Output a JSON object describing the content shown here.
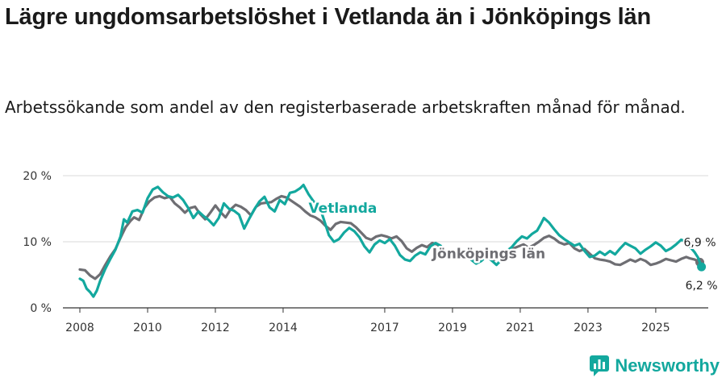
{
  "title": "Lägre ungdomsarbetslöshet i Vetlanda än i Jönköpings län",
  "subtitle": "Arbetssökande som andel av den registerbaserade arbetskraften månad för månad.",
  "brand": {
    "name": "Newsworthy",
    "icon": "newsworthy-logo-icon"
  },
  "colors": {
    "vetlanda": "#13a89e",
    "lan": "#6e6e73",
    "grid": "#d9d9d9",
    "axis": "#333333"
  },
  "chart_data": {
    "type": "line",
    "title": "Lägre ungdomsarbetslöshet i Vetlanda än i Jönköpings län",
    "xlabel": "",
    "ylabel": "",
    "ylim": [
      0,
      20
    ],
    "xlim": [
      2007.5,
      2026.55
    ],
    "yticks": [
      {
        "value": 0,
        "label": "0 %"
      },
      {
        "value": 10,
        "label": "10 %"
      },
      {
        "value": 20,
        "label": "20 %"
      }
    ],
    "xticks": [
      {
        "value": 2008,
        "label": "2008"
      },
      {
        "value": 2010,
        "label": "2010"
      },
      {
        "value": 2012,
        "label": "2012"
      },
      {
        "value": 2014,
        "label": "2014"
      },
      {
        "value": 2017,
        "label": "2017"
      },
      {
        "value": 2019,
        "label": "2019"
      },
      {
        "value": 2021,
        "label": "2021"
      },
      {
        "value": 2023,
        "label": "2023"
      },
      {
        "value": 2025,
        "label": "2025"
      }
    ],
    "grid": true,
    "series": [
      {
        "name": "Jönköpings län",
        "label": "Jönköpings län",
        "color": "#6e6e73",
        "end_label": "6,9 %",
        "points": [
          [
            2008.0,
            5.8
          ],
          [
            2008.15,
            5.7
          ],
          [
            2008.3,
            4.9
          ],
          [
            2008.45,
            4.4
          ],
          [
            2008.6,
            5.1
          ],
          [
            2008.75,
            6.5
          ],
          [
            2008.9,
            7.8
          ],
          [
            2009.05,
            8.9
          ],
          [
            2009.2,
            10.6
          ],
          [
            2009.35,
            12.2
          ],
          [
            2009.5,
            13.2
          ],
          [
            2009.6,
            13.7
          ],
          [
            2009.75,
            13.3
          ],
          [
            2009.9,
            15.1
          ],
          [
            2010.05,
            16.1
          ],
          [
            2010.2,
            16.7
          ],
          [
            2010.35,
            16.9
          ],
          [
            2010.5,
            16.6
          ],
          [
            2010.65,
            16.8
          ],
          [
            2010.8,
            15.8
          ],
          [
            2010.95,
            15.2
          ],
          [
            2011.1,
            14.4
          ],
          [
            2011.25,
            15.1
          ],
          [
            2011.4,
            15.3
          ],
          [
            2011.55,
            14.2
          ],
          [
            2011.7,
            13.4
          ],
          [
            2011.85,
            14.4
          ],
          [
            2012.0,
            15.5
          ],
          [
            2012.15,
            14.5
          ],
          [
            2012.3,
            13.7
          ],
          [
            2012.45,
            14.9
          ],
          [
            2012.6,
            15.6
          ],
          [
            2012.75,
            15.3
          ],
          [
            2012.9,
            14.8
          ],
          [
            2013.05,
            14.0
          ],
          [
            2013.2,
            15.3
          ],
          [
            2013.35,
            15.8
          ],
          [
            2013.5,
            15.9
          ],
          [
            2013.65,
            16.0
          ],
          [
            2013.8,
            16.5
          ],
          [
            2013.95,
            16.9
          ],
          [
            2014.1,
            16.7
          ],
          [
            2014.3,
            16.0
          ],
          [
            2014.5,
            15.3
          ],
          [
            2014.65,
            14.6
          ],
          [
            2014.8,
            14.0
          ],
          [
            2014.95,
            13.7
          ],
          [
            2015.1,
            13.2
          ],
          [
            2015.25,
            12.4
          ],
          [
            2015.4,
            11.8
          ],
          [
            2015.55,
            12.7
          ],
          [
            2015.7,
            13.0
          ],
          [
            2015.85,
            12.9
          ],
          [
            2016.0,
            12.8
          ],
          [
            2016.15,
            12.2
          ],
          [
            2016.3,
            11.4
          ],
          [
            2016.45,
            10.6
          ],
          [
            2016.6,
            10.3
          ],
          [
            2016.75,
            10.8
          ],
          [
            2016.9,
            11.0
          ],
          [
            2017.05,
            10.8
          ],
          [
            2017.2,
            10.5
          ],
          [
            2017.35,
            10.8
          ],
          [
            2017.5,
            10.1
          ],
          [
            2017.65,
            9.0
          ],
          [
            2017.8,
            8.5
          ],
          [
            2017.95,
            9.1
          ],
          [
            2018.1,
            9.5
          ],
          [
            2018.25,
            9.2
          ],
          [
            2018.4,
            9.8
          ],
          [
            2018.55,
            9.6
          ],
          [
            2018.7,
            9.0
          ],
          [
            2018.85,
            8.4
          ],
          [
            2019.0,
            8.1
          ],
          [
            2019.15,
            8.5
          ],
          [
            2019.3,
            8.6
          ],
          [
            2019.45,
            7.9
          ],
          [
            2019.6,
            7.3
          ],
          [
            2019.75,
            7.5
          ],
          [
            2019.9,
            7.8
          ],
          [
            2020.05,
            7.5
          ],
          [
            2020.2,
            7.2
          ],
          [
            2020.35,
            7.6
          ],
          [
            2020.5,
            8.2
          ],
          [
            2020.65,
            8.6
          ],
          [
            2020.8,
            9.0
          ],
          [
            2020.95,
            9.3
          ],
          [
            2021.1,
            9.6
          ],
          [
            2021.25,
            9.1
          ],
          [
            2021.4,
            9.5
          ],
          [
            2021.55,
            10.0
          ],
          [
            2021.7,
            10.6
          ],
          [
            2021.85,
            10.9
          ],
          [
            2022.0,
            10.5
          ],
          [
            2022.15,
            9.9
          ],
          [
            2022.3,
            9.6
          ],
          [
            2022.45,
            9.8
          ],
          [
            2022.6,
            9.0
          ],
          [
            2022.75,
            8.6
          ],
          [
            2022.9,
            8.9
          ],
          [
            2023.05,
            8.2
          ],
          [
            2023.2,
            7.5
          ],
          [
            2023.35,
            7.3
          ],
          [
            2023.5,
            7.2
          ],
          [
            2023.65,
            7.0
          ],
          [
            2023.8,
            6.6
          ],
          [
            2023.95,
            6.5
          ],
          [
            2024.1,
            6.9
          ],
          [
            2024.25,
            7.3
          ],
          [
            2024.4,
            7.0
          ],
          [
            2024.55,
            7.4
          ],
          [
            2024.7,
            7.1
          ],
          [
            2024.85,
            6.5
          ],
          [
            2025.0,
            6.7
          ],
          [
            2025.15,
            7.0
          ],
          [
            2025.3,
            7.4
          ],
          [
            2025.45,
            7.2
          ],
          [
            2025.6,
            7.0
          ],
          [
            2025.75,
            7.4
          ],
          [
            2025.9,
            7.7
          ],
          [
            2026.0,
            7.5
          ],
          [
            2026.15,
            7.3
          ],
          [
            2026.3,
            6.9
          ]
        ]
      },
      {
        "name": "Vetlanda",
        "label": "Vetlanda",
        "color": "#13a89e",
        "end_label": "6,2 %",
        "points": [
          [
            2008.0,
            4.4
          ],
          [
            2008.1,
            4.1
          ],
          [
            2008.2,
            2.9
          ],
          [
            2008.3,
            2.4
          ],
          [
            2008.4,
            1.7
          ],
          [
            2008.5,
            2.6
          ],
          [
            2008.6,
            4.1
          ],
          [
            2008.75,
            5.9
          ],
          [
            2008.9,
            7.4
          ],
          [
            2009.05,
            8.8
          ],
          [
            2009.2,
            10.8
          ],
          [
            2009.3,
            13.4
          ],
          [
            2009.4,
            12.9
          ],
          [
            2009.55,
            14.6
          ],
          [
            2009.7,
            14.8
          ],
          [
            2009.85,
            14.4
          ],
          [
            2010.0,
            16.6
          ],
          [
            2010.15,
            17.9
          ],
          [
            2010.3,
            18.3
          ],
          [
            2010.45,
            17.5
          ],
          [
            2010.6,
            16.9
          ],
          [
            2010.75,
            16.7
          ],
          [
            2010.9,
            17.1
          ],
          [
            2011.05,
            16.3
          ],
          [
            2011.2,
            15.1
          ],
          [
            2011.35,
            13.6
          ],
          [
            2011.5,
            14.6
          ],
          [
            2011.65,
            13.9
          ],
          [
            2011.8,
            13.3
          ],
          [
            2011.95,
            12.5
          ],
          [
            2012.1,
            13.6
          ],
          [
            2012.25,
            15.8
          ],
          [
            2012.4,
            15.0
          ],
          [
            2012.55,
            14.7
          ],
          [
            2012.7,
            14.1
          ],
          [
            2012.85,
            12.0
          ],
          [
            2013.0,
            13.5
          ],
          [
            2013.15,
            14.9
          ],
          [
            2013.3,
            16.1
          ],
          [
            2013.45,
            16.8
          ],
          [
            2013.6,
            15.2
          ],
          [
            2013.75,
            14.6
          ],
          [
            2013.9,
            16.3
          ],
          [
            2014.05,
            15.7
          ],
          [
            2014.2,
            17.4
          ],
          [
            2014.35,
            17.6
          ],
          [
            2014.5,
            18.1
          ],
          [
            2014.6,
            18.6
          ],
          [
            2014.75,
            17.2
          ],
          [
            2014.9,
            16.1
          ],
          [
            2015.05,
            15.7
          ],
          [
            2015.2,
            13.4
          ],
          [
            2015.35,
            11.0
          ],
          [
            2015.5,
            10.0
          ],
          [
            2015.65,
            10.4
          ],
          [
            2015.8,
            11.4
          ],
          [
            2015.95,
            12.1
          ],
          [
            2016.1,
            11.6
          ],
          [
            2016.25,
            10.7
          ],
          [
            2016.4,
            9.3
          ],
          [
            2016.55,
            8.4
          ],
          [
            2016.7,
            9.6
          ],
          [
            2016.85,
            10.2
          ],
          [
            2017.0,
            9.8
          ],
          [
            2017.15,
            10.4
          ],
          [
            2017.3,
            9.4
          ],
          [
            2017.45,
            8.0
          ],
          [
            2017.6,
            7.3
          ],
          [
            2017.75,
            7.1
          ],
          [
            2017.9,
            7.9
          ],
          [
            2018.05,
            8.4
          ],
          [
            2018.2,
            8.1
          ],
          [
            2018.35,
            9.3
          ],
          [
            2018.5,
            9.8
          ],
          [
            2018.65,
            9.4
          ],
          [
            2018.8,
            8.3
          ],
          [
            2018.95,
            7.9
          ],
          [
            2019.1,
            8.5
          ],
          [
            2019.25,
            8.8
          ],
          [
            2019.4,
            8.1
          ],
          [
            2019.55,
            7.3
          ],
          [
            2019.7,
            6.7
          ],
          [
            2019.85,
            7.1
          ],
          [
            2020.0,
            7.8
          ],
          [
            2020.15,
            7.2
          ],
          [
            2020.3,
            6.5
          ],
          [
            2020.45,
            7.3
          ],
          [
            2020.6,
            8.6
          ],
          [
            2020.75,
            9.2
          ],
          [
            2020.9,
            10.1
          ],
          [
            2021.05,
            10.8
          ],
          [
            2021.2,
            10.5
          ],
          [
            2021.35,
            11.2
          ],
          [
            2021.5,
            11.7
          ],
          [
            2021.6,
            12.6
          ],
          [
            2021.7,
            13.6
          ],
          [
            2021.85,
            12.9
          ],
          [
            2022.0,
            11.9
          ],
          [
            2022.15,
            11.0
          ],
          [
            2022.3,
            10.4
          ],
          [
            2022.45,
            9.9
          ],
          [
            2022.6,
            9.4
          ],
          [
            2022.75,
            9.7
          ],
          [
            2022.9,
            8.6
          ],
          [
            2023.05,
            7.7
          ],
          [
            2023.2,
            7.9
          ],
          [
            2023.35,
            8.5
          ],
          [
            2023.5,
            8.0
          ],
          [
            2023.65,
            8.6
          ],
          [
            2023.8,
            8.1
          ],
          [
            2023.95,
            9.0
          ],
          [
            2024.1,
            9.8
          ],
          [
            2024.25,
            9.4
          ],
          [
            2024.4,
            9.0
          ],
          [
            2024.55,
            8.2
          ],
          [
            2024.7,
            8.8
          ],
          [
            2024.85,
            9.3
          ],
          [
            2025.0,
            9.9
          ],
          [
            2025.15,
            9.4
          ],
          [
            2025.3,
            8.6
          ],
          [
            2025.45,
            9.0
          ],
          [
            2025.6,
            9.6
          ],
          [
            2025.75,
            10.3
          ],
          [
            2025.9,
            10.0
          ],
          [
            2026.05,
            9.0
          ],
          [
            2026.15,
            8.4
          ],
          [
            2026.25,
            7.6
          ],
          [
            2026.35,
            6.2
          ]
        ]
      }
    ]
  }
}
